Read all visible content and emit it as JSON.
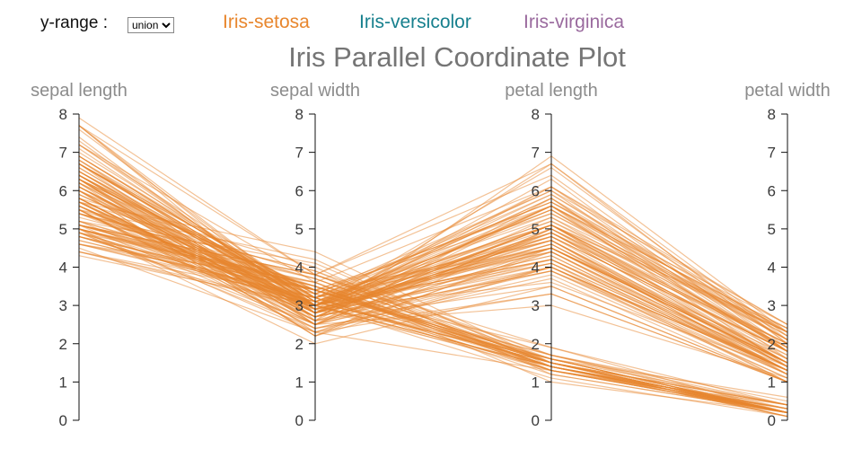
{
  "title": "Iris Parallel Coordinate Plot",
  "controls": {
    "y_range_label": "y-range :",
    "y_range_value": "union",
    "legend": [
      {
        "label": "Iris-setosa",
        "color": "#e8862d"
      },
      {
        "label": "Iris-versicolor",
        "color": "#17808e"
      },
      {
        "label": "Iris-virginica",
        "color": "#9a6a9e"
      }
    ]
  },
  "chart_data": {
    "type": "line",
    "variant": "parallel_coordinates",
    "title": "Iris Parallel Coordinate Plot",
    "axes": [
      "sepal length",
      "sepal width",
      "petal length",
      "petal width"
    ],
    "axis_range": [
      0,
      8
    ],
    "tick_step": 1,
    "grid": false,
    "line_color": "#e8862d",
    "line_opacity": 0.5,
    "series": [
      {
        "name": "Iris-setosa",
        "color": "#e8862d",
        "rows": [
          [
            5.1,
            3.5,
            1.4,
            0.2
          ],
          [
            4.9,
            3.0,
            1.4,
            0.2
          ],
          [
            4.7,
            3.2,
            1.3,
            0.2
          ],
          [
            4.6,
            3.1,
            1.5,
            0.2
          ],
          [
            5.0,
            3.6,
            1.4,
            0.2
          ],
          [
            5.4,
            3.9,
            1.7,
            0.4
          ],
          [
            4.6,
            3.4,
            1.4,
            0.3
          ],
          [
            5.0,
            3.4,
            1.5,
            0.2
          ],
          [
            4.4,
            2.9,
            1.4,
            0.2
          ],
          [
            4.9,
            3.1,
            1.5,
            0.1
          ],
          [
            5.4,
            3.7,
            1.5,
            0.2
          ],
          [
            4.8,
            3.4,
            1.6,
            0.2
          ],
          [
            4.8,
            3.0,
            1.4,
            0.1
          ],
          [
            4.3,
            3.0,
            1.1,
            0.1
          ],
          [
            5.8,
            4.0,
            1.2,
            0.2
          ],
          [
            5.7,
            4.4,
            1.5,
            0.4
          ],
          [
            5.4,
            3.9,
            1.3,
            0.4
          ],
          [
            5.1,
            3.5,
            1.4,
            0.3
          ],
          [
            5.7,
            3.8,
            1.7,
            0.3
          ],
          [
            5.1,
            3.8,
            1.5,
            0.3
          ],
          [
            5.4,
            3.4,
            1.7,
            0.2
          ],
          [
            5.1,
            3.7,
            1.5,
            0.4
          ],
          [
            4.6,
            3.6,
            1.0,
            0.2
          ],
          [
            5.1,
            3.3,
            1.7,
            0.5
          ],
          [
            4.8,
            3.4,
            1.9,
            0.2
          ],
          [
            5.0,
            3.0,
            1.6,
            0.2
          ],
          [
            5.0,
            3.4,
            1.6,
            0.4
          ],
          [
            5.2,
            3.5,
            1.5,
            0.2
          ],
          [
            5.2,
            3.4,
            1.4,
            0.2
          ],
          [
            4.7,
            3.2,
            1.6,
            0.2
          ],
          [
            4.8,
            3.1,
            1.6,
            0.2
          ],
          [
            5.4,
            3.4,
            1.5,
            0.4
          ],
          [
            5.2,
            4.1,
            1.5,
            0.1
          ],
          [
            5.5,
            4.2,
            1.4,
            0.2
          ],
          [
            4.9,
            3.1,
            1.5,
            0.2
          ],
          [
            5.0,
            3.2,
            1.2,
            0.2
          ],
          [
            5.5,
            3.5,
            1.3,
            0.2
          ],
          [
            4.9,
            3.6,
            1.4,
            0.1
          ],
          [
            4.4,
            3.0,
            1.3,
            0.2
          ],
          [
            5.1,
            3.4,
            1.5,
            0.2
          ],
          [
            5.0,
            3.5,
            1.3,
            0.3
          ],
          [
            4.5,
            2.3,
            1.3,
            0.3
          ],
          [
            4.4,
            3.2,
            1.3,
            0.2
          ],
          [
            5.0,
            3.5,
            1.6,
            0.6
          ],
          [
            5.1,
            3.8,
            1.9,
            0.4
          ],
          [
            4.8,
            3.0,
            1.4,
            0.3
          ],
          [
            5.1,
            3.8,
            1.6,
            0.2
          ],
          [
            4.6,
            3.2,
            1.4,
            0.2
          ],
          [
            5.3,
            3.7,
            1.5,
            0.2
          ],
          [
            5.0,
            3.3,
            1.4,
            0.2
          ]
        ]
      },
      {
        "name": "Iris-versicolor",
        "color": "#17808e",
        "rows": [
          [
            7.0,
            3.2,
            4.7,
            1.4
          ],
          [
            6.4,
            3.2,
            4.5,
            1.5
          ],
          [
            6.9,
            3.1,
            4.9,
            1.5
          ],
          [
            5.5,
            2.3,
            4.0,
            1.3
          ],
          [
            6.5,
            2.8,
            4.6,
            1.5
          ],
          [
            5.7,
            2.8,
            4.5,
            1.3
          ],
          [
            6.3,
            3.3,
            4.7,
            1.6
          ],
          [
            4.9,
            2.4,
            3.3,
            1.0
          ],
          [
            6.6,
            2.9,
            4.6,
            1.3
          ],
          [
            5.2,
            2.7,
            3.9,
            1.4
          ],
          [
            5.0,
            2.0,
            3.5,
            1.0
          ],
          [
            5.9,
            3.0,
            4.2,
            1.5
          ],
          [
            6.0,
            2.2,
            4.0,
            1.0
          ],
          [
            6.1,
            2.9,
            4.7,
            1.4
          ],
          [
            5.6,
            2.9,
            3.6,
            1.3
          ],
          [
            6.7,
            3.1,
            4.4,
            1.4
          ],
          [
            5.6,
            3.0,
            4.5,
            1.5
          ],
          [
            5.8,
            2.7,
            4.1,
            1.0
          ],
          [
            6.2,
            2.2,
            4.5,
            1.5
          ],
          [
            5.6,
            2.5,
            3.9,
            1.1
          ],
          [
            5.9,
            3.2,
            4.8,
            1.8
          ],
          [
            6.1,
            2.8,
            4.0,
            1.3
          ],
          [
            6.3,
            2.5,
            4.9,
            1.5
          ],
          [
            6.1,
            2.8,
            4.7,
            1.2
          ],
          [
            6.4,
            2.9,
            4.3,
            1.3
          ],
          [
            6.6,
            3.0,
            4.4,
            1.4
          ],
          [
            6.8,
            2.8,
            4.8,
            1.4
          ],
          [
            6.7,
            3.0,
            5.0,
            1.7
          ],
          [
            6.0,
            2.9,
            4.5,
            1.5
          ],
          [
            5.7,
            2.6,
            3.5,
            1.0
          ],
          [
            5.5,
            2.4,
            3.8,
            1.1
          ],
          [
            5.5,
            2.4,
            3.7,
            1.0
          ],
          [
            5.8,
            2.7,
            3.9,
            1.2
          ],
          [
            6.0,
            2.7,
            5.1,
            1.6
          ],
          [
            5.4,
            3.0,
            4.5,
            1.5
          ],
          [
            6.0,
            3.4,
            4.5,
            1.6
          ],
          [
            6.7,
            3.1,
            4.7,
            1.5
          ],
          [
            6.3,
            2.3,
            4.4,
            1.3
          ],
          [
            5.6,
            3.0,
            4.1,
            1.3
          ],
          [
            5.5,
            2.5,
            4.0,
            1.3
          ],
          [
            5.5,
            2.6,
            4.4,
            1.2
          ],
          [
            6.1,
            3.0,
            4.6,
            1.4
          ],
          [
            5.8,
            2.6,
            4.0,
            1.2
          ],
          [
            5.0,
            2.3,
            3.3,
            1.0
          ],
          [
            5.6,
            2.7,
            4.2,
            1.3
          ],
          [
            5.7,
            3.0,
            4.2,
            1.2
          ],
          [
            5.7,
            2.9,
            4.2,
            1.3
          ],
          [
            6.2,
            2.9,
            4.3,
            1.3
          ],
          [
            5.1,
            2.5,
            3.0,
            1.1
          ],
          [
            5.7,
            2.8,
            4.1,
            1.3
          ]
        ]
      },
      {
        "name": "Iris-virginica",
        "color": "#9a6a9e",
        "rows": [
          [
            6.3,
            3.3,
            6.0,
            2.5
          ],
          [
            5.8,
            2.7,
            5.1,
            1.9
          ],
          [
            7.1,
            3.0,
            5.9,
            2.1
          ],
          [
            6.3,
            2.9,
            5.6,
            1.8
          ],
          [
            6.5,
            3.0,
            5.8,
            2.2
          ],
          [
            7.6,
            3.0,
            6.6,
            2.1
          ],
          [
            4.9,
            2.5,
            4.5,
            1.7
          ],
          [
            7.3,
            2.9,
            6.3,
            1.8
          ],
          [
            6.7,
            2.5,
            5.8,
            1.8
          ],
          [
            7.2,
            3.6,
            6.1,
            2.5
          ],
          [
            6.5,
            3.2,
            5.1,
            2.0
          ],
          [
            6.4,
            2.7,
            5.3,
            1.9
          ],
          [
            6.8,
            3.0,
            5.5,
            2.1
          ],
          [
            5.7,
            2.5,
            5.0,
            2.0
          ],
          [
            5.8,
            2.8,
            5.1,
            2.4
          ],
          [
            6.4,
            3.2,
            5.3,
            2.3
          ],
          [
            6.5,
            3.0,
            5.5,
            1.8
          ],
          [
            7.7,
            3.8,
            6.7,
            2.2
          ],
          [
            7.7,
            2.6,
            6.9,
            2.3
          ],
          [
            6.0,
            2.2,
            5.0,
            1.5
          ],
          [
            6.9,
            3.2,
            5.7,
            2.3
          ],
          [
            5.6,
            2.8,
            4.9,
            2.0
          ],
          [
            7.7,
            2.8,
            6.7,
            2.0
          ],
          [
            6.3,
            2.7,
            4.9,
            1.8
          ],
          [
            6.7,
            3.3,
            5.7,
            2.1
          ],
          [
            7.2,
            3.2,
            6.0,
            1.8
          ],
          [
            6.2,
            2.8,
            4.8,
            1.8
          ],
          [
            6.1,
            3.0,
            4.9,
            1.8
          ],
          [
            6.4,
            2.8,
            5.6,
            2.1
          ],
          [
            7.2,
            3.0,
            5.8,
            1.6
          ],
          [
            7.4,
            2.8,
            6.1,
            1.9
          ],
          [
            7.9,
            3.8,
            6.4,
            2.0
          ],
          [
            6.4,
            2.8,
            5.6,
            2.2
          ],
          [
            6.3,
            2.8,
            5.1,
            1.5
          ],
          [
            6.1,
            2.6,
            5.6,
            1.4
          ],
          [
            7.7,
            3.0,
            6.1,
            2.3
          ],
          [
            6.3,
            3.4,
            5.6,
            2.4
          ],
          [
            6.4,
            3.1,
            5.5,
            1.8
          ],
          [
            6.0,
            3.0,
            4.8,
            1.8
          ],
          [
            6.9,
            3.1,
            5.4,
            2.1
          ],
          [
            6.7,
            3.1,
            5.6,
            2.4
          ],
          [
            6.9,
            3.1,
            5.1,
            2.3
          ],
          [
            5.8,
            2.7,
            5.1,
            1.9
          ],
          [
            6.8,
            3.2,
            5.9,
            2.3
          ],
          [
            6.7,
            3.3,
            5.7,
            2.5
          ],
          [
            6.7,
            3.0,
            5.2,
            2.3
          ],
          [
            6.3,
            2.5,
            5.0,
            1.9
          ],
          [
            6.5,
            3.0,
            5.2,
            2.0
          ],
          [
            6.2,
            3.4,
            5.4,
            2.3
          ],
          [
            5.9,
            3.0,
            5.1,
            1.8
          ]
        ]
      }
    ]
  }
}
